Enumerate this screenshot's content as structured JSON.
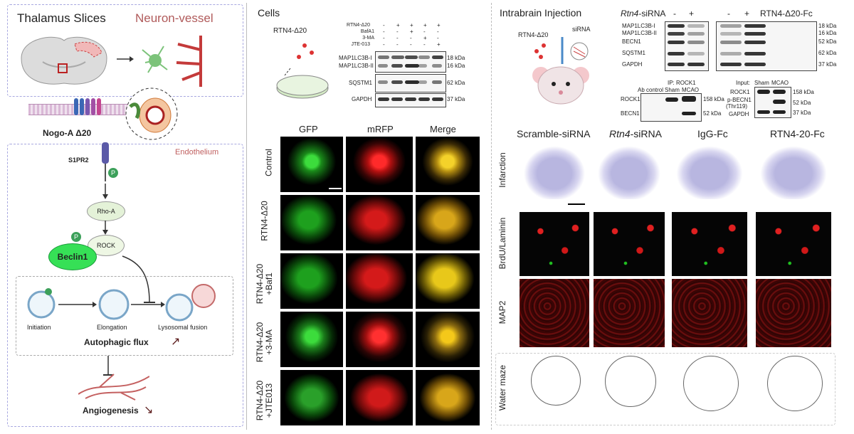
{
  "left": {
    "title": "Thalamus Slices",
    "neuron_vessel": "Neuron-vessel",
    "nogo_label": "Nogo-A Δ20",
    "s1pr2": "S1PR2",
    "endothelium": "Endothelium",
    "p_badge": "P",
    "rho_a": "Rho-A",
    "rock": "ROCK",
    "beclin1": "Beclin1",
    "initiation": "Initiation",
    "elongation": "Elongation",
    "lysosomal_fusion": "Lysosomal fusion",
    "autophagic_flux": "Autophagic flux",
    "angiogenesis": "Angiogenesis"
  },
  "cells": {
    "title": "Cells",
    "rtn4_label": "RTN4-Δ20",
    "wb_rows": [
      {
        "name": "RTN4-Δ20",
        "vals": [
          "-",
          "+",
          "+",
          "+",
          "+"
        ]
      },
      {
        "name": "BafA1",
        "vals": [
          "-",
          "-",
          "+",
          "-",
          "-"
        ]
      },
      {
        "name": "3-MA",
        "vals": [
          "-",
          "-",
          "-",
          "+",
          "-"
        ]
      },
      {
        "name": "JTE-013",
        "vals": [
          "-",
          "-",
          "-",
          "-",
          "+"
        ]
      }
    ],
    "blots": [
      {
        "name1": "MAP1LC3B-I",
        "name2": "MAP1LC3B-II",
        "kda1": "18 kDa",
        "kda2": "16 kDa"
      },
      {
        "name1": "SQSTM1",
        "kda1": "62 kDa"
      },
      {
        "name1": "GAPDH",
        "kda1": "37 kDa"
      }
    ],
    "col_headers": [
      "GFP",
      "mRFP",
      "Merge"
    ],
    "row_labels": [
      "Control",
      "RTN4-Δ20",
      "RTN4-Δ20 +Baf1",
      "RTN4-Δ20 +3-MA",
      "RTN4-Δ20 +JTE013"
    ]
  },
  "injection": {
    "title": "Intrabrain Injection",
    "rtn4_label": "RTN4-Δ20",
    "sirna_label": "siRNA",
    "rtn4_sirna": "Rtn4",
    "sirna_suffix": "-siRNA",
    "fc_label": "RTN4-Δ20-Fc",
    "minus": "-",
    "plus": "+",
    "blots_left": [
      "MAP1LC3B-I",
      "MAP1LC3B-II",
      "BECN1",
      "SQSTM1",
      "GAPDH"
    ],
    "kda_right": [
      "18 kDa",
      "16 kDa",
      "52 kDa",
      "62 kDa",
      "37 kDa"
    ],
    "ip_title": "IP: ROCK1",
    "ip_cols": [
      "Ab control",
      "Sham",
      "MCAO"
    ],
    "ip_rows": [
      "ROCK1",
      "BECN1"
    ],
    "ip_kda": [
      "158 kDa",
      "52 kDa"
    ],
    "input_title": "Input:",
    "input_cols": [
      "Sham",
      "MCAO"
    ],
    "input_rows": [
      "ROCK1",
      "p-BECN1",
      "(Thr119)",
      "GAPDH"
    ],
    "input_kda": [
      "158 kDa",
      "52 kDa",
      "37 kDa"
    ],
    "col_headers": [
      "Scramble-siRNA",
      "Rtn4",
      "IgG-Fc",
      "RTN4-20-Fc"
    ],
    "row_labels": [
      "Infarction",
      "BrdU/Laminin",
      "MAP2",
      "Water maze"
    ]
  }
}
